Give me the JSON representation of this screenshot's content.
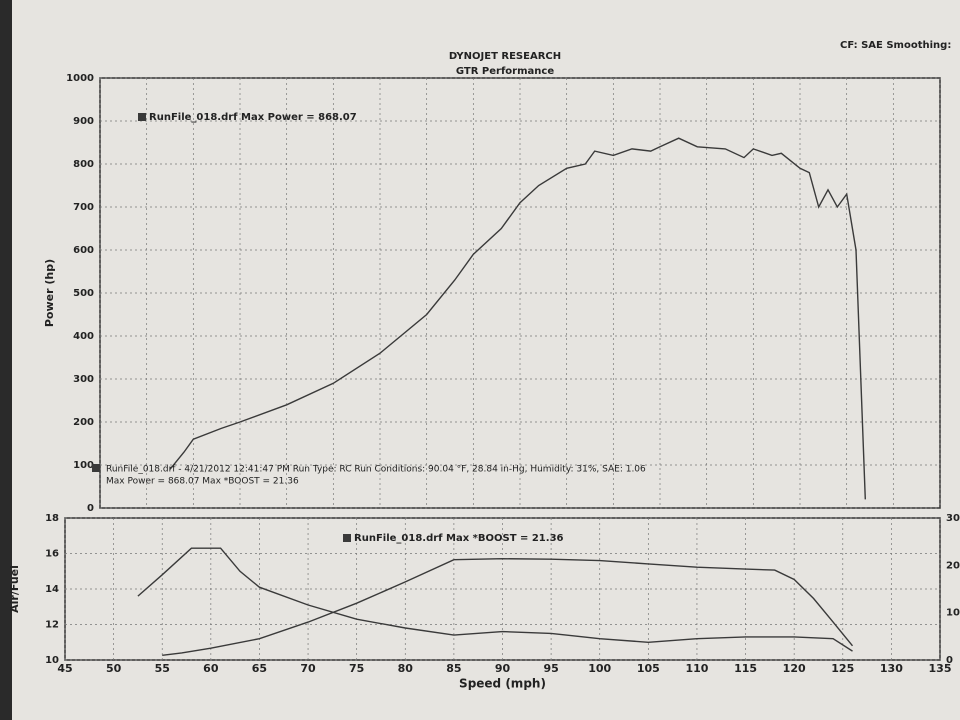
{
  "header": {
    "title": "DYNOJET RESEARCH",
    "subtitle": "GTR Performance",
    "settings": "CF: SAE  Smoothing:"
  },
  "chart_data": [
    {
      "type": "line",
      "y_label": "Power (hp)",
      "xlim": [
        45,
        135
      ],
      "ylim": [
        0,
        1000
      ],
      "yticks": [
        0,
        100,
        200,
        300,
        400,
        500,
        600,
        700,
        800,
        900,
        1000
      ],
      "grid": true,
      "series": [
        {
          "name": "RunFile_018.drf Max Power = 868.07",
          "color": "#3a3a3a",
          "x": [
            52.5,
            54,
            55,
            58,
            60,
            65,
            70,
            75,
            80,
            83,
            85,
            88,
            90,
            92,
            95,
            97,
            98,
            100,
            102,
            104,
            105,
            107,
            109,
            112,
            114,
            115,
            117,
            118,
            120,
            121,
            122,
            123,
            124,
            125,
            126,
            127
          ],
          "values": [
            90,
            130,
            160,
            185,
            200,
            240,
            290,
            360,
            450,
            530,
            590,
            650,
            710,
            750,
            790,
            800,
            830,
            820,
            835,
            830,
            840,
            860,
            840,
            835,
            815,
            835,
            820,
            825,
            790,
            780,
            700,
            740,
            700,
            730,
            600,
            20
          ]
        }
      ],
      "annotations": [
        "RunFile_018.drf - 4/21/2012 12:41:47 PM  Run Type: RC  Run Conditions: 90.04 °F, 28.84 in-Hg, Humidity: 31%, SAE: 1.06",
        "Max Power = 868.07  Max *BOOST = 21.36"
      ]
    },
    {
      "type": "line",
      "x_label": "Speed (mph)",
      "y_label": "Air/Fuel",
      "xlim": [
        45,
        135
      ],
      "xticks": [
        45,
        50,
        55,
        60,
        65,
        70,
        75,
        80,
        85,
        90,
        95,
        100,
        105,
        110,
        115,
        120,
        125,
        130,
        135
      ],
      "ylim": [
        10,
        18
      ],
      "yticks": [
        10,
        12,
        14,
        16,
        18
      ],
      "y2lim": [
        0,
        30
      ],
      "y2ticks": [
        0,
        10,
        20,
        30
      ],
      "grid": true,
      "series": [
        {
          "color": "#3a3a3a",
          "x": [
            52.5,
            55,
            58,
            61,
            63,
            65,
            70,
            75,
            80,
            85,
            90,
            95,
            100,
            105,
            110,
            115,
            120,
            124,
            126
          ],
          "values": [
            13.6,
            14.8,
            16.3,
            16.3,
            15,
            14.1,
            13.1,
            12.3,
            11.8,
            11.4,
            11.6,
            11.5,
            11.2,
            11,
            11.2,
            11.3,
            11.3,
            11.2,
            10.5
          ]
        },
        {
          "name": "RunFile_018.drf Max *BOOST = 21.36",
          "color": "#3a3a3a",
          "axis": "y2",
          "x": [
            55,
            57,
            60,
            65,
            70,
            75,
            80,
            85,
            90,
            95,
            100,
            105,
            110,
            115,
            118,
            120,
            122,
            124,
            126
          ],
          "values": [
            1,
            1.5,
            2.5,
            4.5,
            8,
            12,
            16.5,
            21.2,
            21.4,
            21.3,
            21,
            20.3,
            19.6,
            19.2,
            19,
            17,
            13,
            8,
            3
          ]
        }
      ]
    }
  ]
}
